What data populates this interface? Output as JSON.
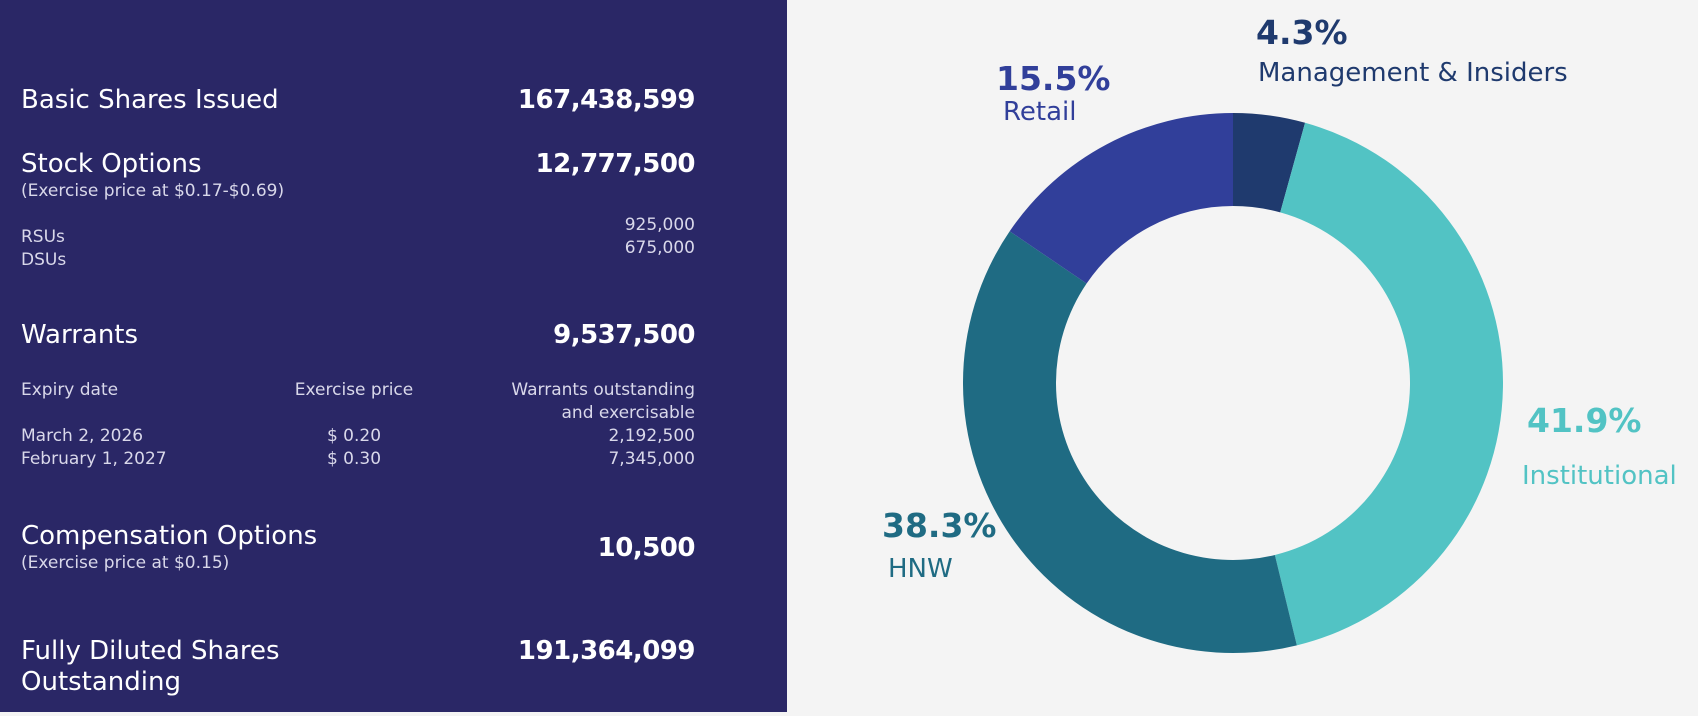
{
  "capital": {
    "basic_shares": {
      "label": "Basic Shares Issued",
      "value": "167,438,599"
    },
    "stock_options": {
      "label": "Stock Options",
      "note": "(Exercise price at $0.17-$0.69)",
      "value": "12,777,500",
      "sub": [
        {
          "label": "RSUs",
          "value": "925,000"
        },
        {
          "label": "DSUs",
          "value": "675,000"
        }
      ]
    },
    "warrants": {
      "label": "Warrants",
      "value": "9,537,500",
      "headers": [
        "Expiry date",
        "Exercise price",
        "Warrants outstanding",
        "and exercisable"
      ],
      "rows": [
        {
          "date": "March 2, 2026",
          "price": "$ 0.20",
          "amount": "2,192,500"
        },
        {
          "date": "February 1, 2027",
          "price": "$ 0.30",
          "amount": "7,345,000"
        }
      ]
    },
    "compensation_options": {
      "label": "Compensation Options",
      "note": "(Exercise price at $0.15)",
      "value": "10,500"
    },
    "fully_diluted": {
      "label_line1": "Fully Diluted Shares",
      "label_line2": "Outstanding",
      "value": "191,364,099"
    }
  },
  "chart_data": {
    "type": "pie",
    "variant": "donut",
    "slices": [
      {
        "label": "Management & Insiders",
        "pct_label": "4.3%",
        "value": 4.3,
        "color": "#1f3a6e"
      },
      {
        "label": "Institutional",
        "pct_label": "41.9%",
        "value": 41.9,
        "color": "#52c3c4"
      },
      {
        "label": "HNW",
        "pct_label": "38.3%",
        "value": 38.3,
        "color": "#1f6b83"
      },
      {
        "label": "Retail",
        "pct_label": "15.5%",
        "value": 15.5,
        "color": "#313f9a"
      }
    ]
  }
}
